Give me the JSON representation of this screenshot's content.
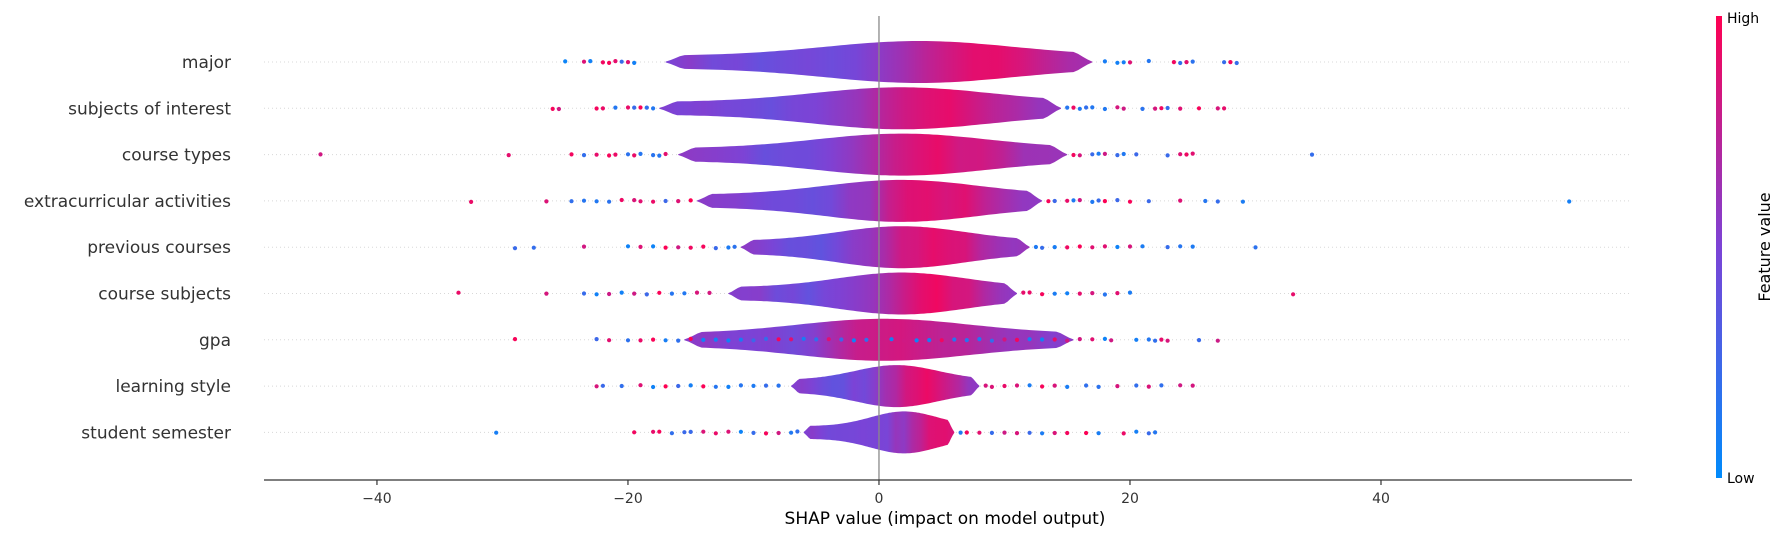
{
  "chart_data": {
    "type": "violin",
    "xlabel": "SHAP value (impact on model output)",
    "xlim": [
      -49,
      60
    ],
    "xticks": [
      -40,
      -20,
      0,
      20,
      40
    ],
    "xtick_labels": [
      "−40",
      "−20",
      "0",
      "20",
      "40"
    ],
    "colorbar": {
      "title": "Feature value",
      "high_label": "High",
      "low_label": "Low",
      "high_color": "#ff0052",
      "low_color": "#008bfb"
    },
    "features": [
      {
        "name": "major",
        "p5": -17,
        "p95": 17,
        "peak": 8,
        "points": [
          -25,
          -23.5,
          -23,
          -22,
          -21.5,
          -21,
          -20.5,
          -20,
          -19.5,
          18,
          19,
          19.5,
          20,
          21.5,
          23.5,
          24,
          24.5,
          25,
          27.5,
          28,
          28.5
        ]
      },
      {
        "name": "subjects of interest",
        "p5": -17.5,
        "p95": 14.5,
        "peak": 4.5,
        "points": [
          -26,
          -25.5,
          -22.5,
          -22,
          -21,
          -20,
          -19.5,
          -19,
          -18.5,
          -18,
          15,
          15.5,
          16,
          16.5,
          17,
          18,
          19,
          19.5,
          21,
          22,
          22.5,
          23,
          24,
          25.5,
          27,
          27.5
        ]
      },
      {
        "name": "course types",
        "p5": -16,
        "p95": 15,
        "peak": 4.5,
        "points": [
          -44.5,
          -29.5,
          -24.5,
          -23.5,
          -22.5,
          -21.5,
          -21,
          -20,
          -19.5,
          -19,
          -18,
          -17.5,
          -17,
          15.5,
          16,
          17,
          17.5,
          18,
          19,
          19.5,
          20.5,
          23,
          24,
          24.5,
          25,
          34.5
        ]
      },
      {
        "name": "extracurricular activities",
        "p5": -14.5,
        "p95": 13,
        "peak": 4.5,
        "points": [
          -32.5,
          -26.5,
          -24.5,
          -23.5,
          -22.5,
          -21.5,
          -20.5,
          -19.5,
          -19,
          -18,
          -17,
          -16,
          -15,
          13.5,
          14,
          15,
          15.5,
          16,
          17,
          17.5,
          18,
          19,
          20,
          21.5,
          24,
          26,
          27,
          29,
          55
        ]
      },
      {
        "name": "previous courses",
        "p5": -11,
        "p95": 12,
        "peak": 4.5,
        "points": [
          -29,
          -27.5,
          -23.5,
          -20,
          -19,
          -18,
          -17,
          -16,
          -15,
          -14,
          -13,
          -12,
          -11.5,
          12.5,
          13,
          14,
          15,
          16,
          17,
          18,
          19,
          20,
          21,
          23,
          24,
          25,
          30
        ]
      },
      {
        "name": "course subjects",
        "p5": -12,
        "p95": 11,
        "peak": 4.5,
        "points": [
          -33.5,
          -26.5,
          -23.5,
          -22.5,
          -21.5,
          -20.5,
          -19.5,
          -18.5,
          -17.5,
          -16.5,
          -15.5,
          -14.5,
          -13.5,
          11.5,
          12,
          13,
          14,
          15,
          16,
          17,
          18,
          19,
          20,
          33
        ]
      },
      {
        "name": "gpa",
        "p5": -15.5,
        "p95": 15.5,
        "peak": 1,
        "points": [
          -29,
          -22.5,
          -21.5,
          -20,
          -19,
          -18,
          -17,
          -16,
          -15,
          -14,
          -13,
          -12,
          -11,
          -10,
          -9,
          -8,
          -7,
          -6,
          -5,
          -4,
          -3,
          -2,
          -1,
          1,
          2,
          3,
          4,
          5,
          6,
          7,
          8,
          9,
          10,
          11,
          12,
          13,
          14,
          15,
          16,
          17,
          18,
          18.5,
          20.5,
          21.5,
          22,
          22.5,
          23,
          25.5,
          27
        ]
      },
      {
        "name": "learning style",
        "p5": -7,
        "p95": 8,
        "peak": 3.5,
        "points": [
          -22.5,
          -22,
          -20.5,
          -19,
          -18,
          -17,
          -16,
          -15,
          -14,
          -13,
          -12,
          -11,
          -10,
          -9,
          -8,
          8.5,
          9,
          10,
          11,
          12,
          13,
          14,
          15,
          16.5,
          17.5,
          19,
          20.5,
          21.5,
          22.5,
          24,
          25
        ]
      },
      {
        "name": "student semester",
        "p5": -6,
        "p95": 6,
        "peak": 5,
        "points": [
          -30.5,
          -19.5,
          -18,
          -17.5,
          -16.5,
          -15.5,
          -15,
          -14,
          -13,
          -12,
          -11,
          -10,
          -9,
          -8,
          -7,
          -6.5,
          6.5,
          7,
          8,
          9,
          10,
          11,
          12,
          13,
          14,
          15,
          16.5,
          17.5,
          19.5,
          20.5,
          21.5,
          22
        ]
      }
    ]
  }
}
